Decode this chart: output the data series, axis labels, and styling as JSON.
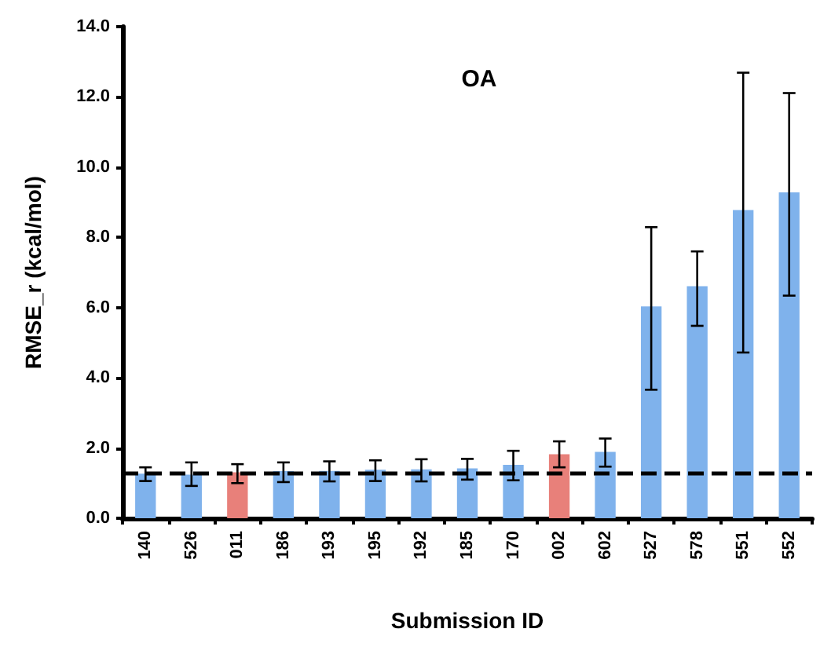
{
  "chart_data": {
    "type": "bar",
    "title": "OA",
    "xlabel": "Submission ID",
    "ylabel": "RMSE_r (kcal/mol)",
    "categories": [
      "140",
      "526",
      "011",
      "186",
      "193",
      "195",
      "192",
      "185",
      "170",
      "002",
      "602",
      "527",
      "578",
      "551",
      "552"
    ],
    "values": [
      1.27,
      1.24,
      1.31,
      1.34,
      1.35,
      1.38,
      1.39,
      1.42,
      1.52,
      1.82,
      1.89,
      6.03,
      6.61,
      8.78,
      9.28
    ],
    "colors": [
      "#7fb2ec",
      "#7fb2ec",
      "#e8807a",
      "#7fb2ec",
      "#7fb2ec",
      "#7fb2ec",
      "#7fb2ec",
      "#7fb2ec",
      "#7fb2ec",
      "#e8807a",
      "#7fb2ec",
      "#7fb2ec",
      "#7fb2ec",
      "#7fb2ec",
      "#7fb2ec"
    ],
    "errors": [
      [
        1.06,
        1.45
      ],
      [
        0.92,
        1.59
      ],
      [
        1.0,
        1.54
      ],
      [
        1.03,
        1.59
      ],
      [
        1.05,
        1.62
      ],
      [
        1.06,
        1.65
      ],
      [
        1.05,
        1.68
      ],
      [
        1.1,
        1.69
      ],
      [
        1.08,
        1.92
      ],
      [
        1.45,
        2.19
      ],
      [
        1.47,
        2.27
      ],
      [
        3.66,
        8.29
      ],
      [
        5.48,
        7.6
      ],
      [
        4.72,
        12.69
      ],
      [
        6.34,
        12.11
      ]
    ],
    "ylim": [
      0,
      14
    ],
    "yticks": [
      {
        "value": 0,
        "label": "0.0"
      },
      {
        "value": 2,
        "label": "2.0"
      },
      {
        "value": 4,
        "label": "4.0"
      },
      {
        "value": 6,
        "label": "6.0"
      },
      {
        "value": 8,
        "label": "8.0"
      },
      {
        "value": 10,
        "label": "10.0"
      },
      {
        "value": 12,
        "label": "12.0"
      },
      {
        "value": 14,
        "label": "14.0"
      }
    ],
    "ref_lines": [
      {
        "axis": "y",
        "value": 1.27,
        "label": null,
        "color": "#000000",
        "line_style": "dashed"
      }
    ],
    "grid": false
  }
}
